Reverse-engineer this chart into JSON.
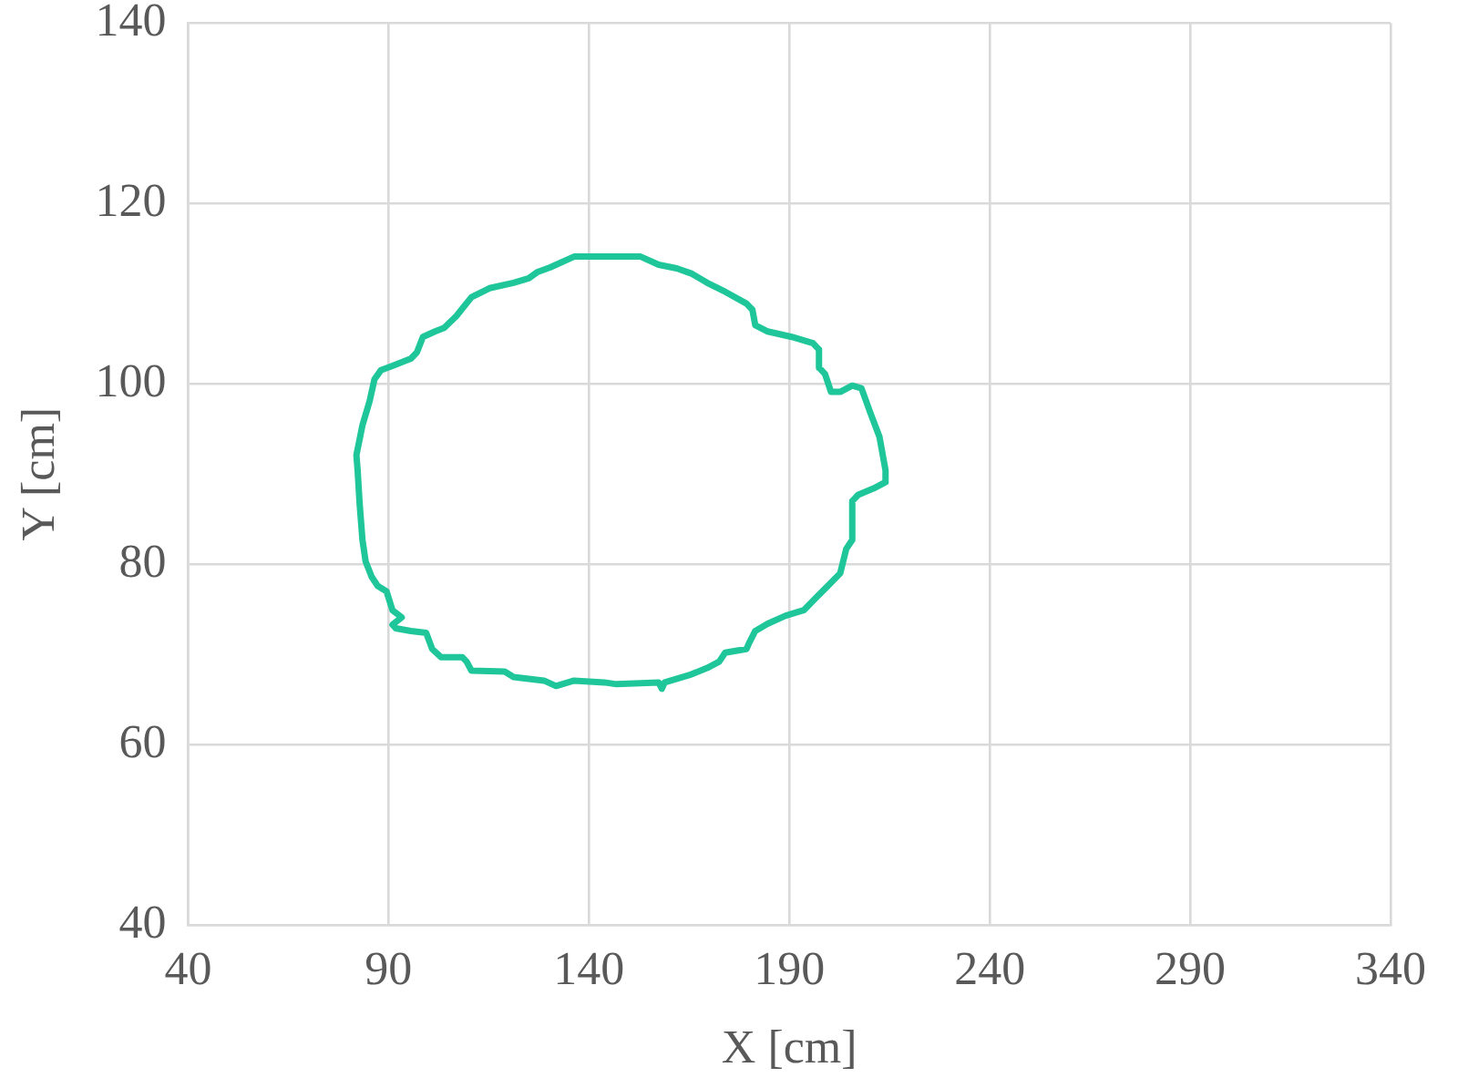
{
  "chart_data": {
    "type": "line",
    "xlabel": "X [cm]",
    "ylabel": "Y [cm]",
    "series": [
      {
        "color": "#1fc69a",
        "x": [
          82.0,
          83.5,
          85.3,
          86.5,
          88.1,
          91.0,
          95.6,
          97.1,
          98.6,
          101.6,
          103.9,
          106.9,
          110.7,
          115.2,
          121.2,
          125.0,
          127.2,
          130.3,
          136.3,
          148.4,
          152.9,
          157.4,
          161.9,
          165.7,
          169.5,
          174.0,
          179.3,
          180.8,
          181.5,
          184.6,
          190.6,
          195.9,
          197.4,
          197.4,
          198.9,
          200.4,
          202.7,
          205.7,
          208.0,
          210.2,
          212.5,
          214.0,
          214.0,
          null,
          214.0,
          211.0,
          207.2,
          205.7,
          205.7,
          204.2,
          202.7,
          199.6,
          196.7,
          193.6,
          189.1,
          184.6,
          181.5,
          180.0,
          179.3,
          174.0,
          172.5,
          169.5,
          165.0,
          158.9,
          158.2,
          157.4,
          146.9,
          143.8,
          136.3,
          131.8,
          128.8,
          121.2,
          119.0,
          110.7,
          109.5,
          108.4,
          103.1,
          100.9,
          99.4,
          95.6,
          91.8,
          91.0,
          93.3,
          91.0,
          89.5,
          87.3,
          85.8,
          84.3,
          83.5,
          82.8,
          82.3,
          82.0
        ],
        "values": [
          92.1,
          95.4,
          98.1,
          100.5,
          101.5,
          102.0,
          102.8,
          103.5,
          105.2,
          105.8,
          106.2,
          107.5,
          109.6,
          110.6,
          111.2,
          111.7,
          112.4,
          112.9,
          114.1,
          114.1,
          114.1,
          113.2,
          112.8,
          112.2,
          111.2,
          110.2,
          108.9,
          108.2,
          106.5,
          105.8,
          105.2,
          104.5,
          103.8,
          101.8,
          101.1,
          99.1,
          99.1,
          99.8,
          99.5,
          96.8,
          94.1,
          90.4,
          89.1,
          null,
          89.1,
          88.4,
          87.7,
          87.0,
          82.7,
          81.7,
          79.0,
          77.6,
          76.3,
          74.9,
          74.3,
          73.4,
          72.6,
          71.3,
          70.6,
          70.2,
          69.2,
          68.5,
          67.7,
          66.9,
          66.2,
          66.9,
          66.7,
          66.9,
          67.1,
          66.5,
          67.1,
          67.5,
          68.1,
          68.2,
          69.2,
          69.7,
          69.7,
          70.6,
          72.4,
          72.6,
          72.9,
          73.3,
          74.1,
          74.9,
          77.0,
          77.6,
          78.6,
          80.3,
          82.7,
          86.7,
          90.4,
          92.1
        ]
      }
    ],
    "xlim": [
      40,
      340
    ],
    "xticks": [
      40,
      90,
      140,
      190,
      240,
      290,
      340
    ],
    "ylim": [
      40,
      140
    ],
    "yticks": [
      40,
      60,
      80,
      100,
      120,
      140
    ],
    "grid": true,
    "marker": "none",
    "line_style": "solid"
  }
}
